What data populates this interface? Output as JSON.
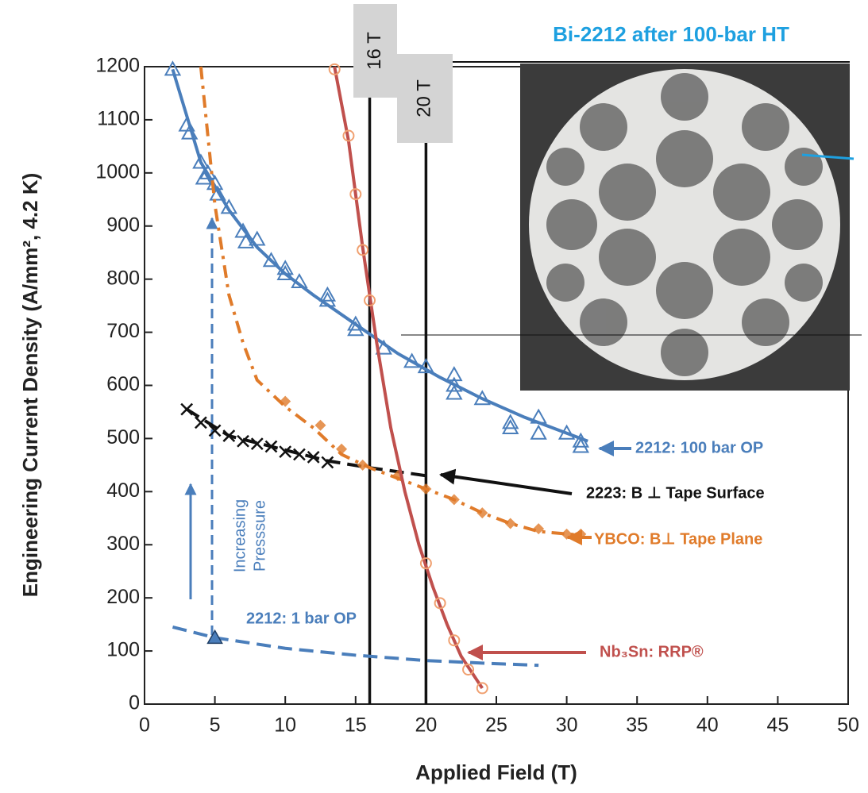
{
  "chart_data": {
    "type": "scatter",
    "title": "Bi-2212 after 100-bar HT",
    "x_label": "Applied Field (T)",
    "y_label": "Engineering Current Density (A/mm², 4.2 K)",
    "xlim": [
      0,
      50
    ],
    "xticks": [
      0,
      5,
      10,
      15,
      20,
      25,
      30,
      35,
      40,
      45,
      50
    ],
    "ylim": [
      0,
      1200
    ],
    "yticks": [
      0,
      100,
      200,
      300,
      400,
      500,
      600,
      700,
      800,
      900,
      1000,
      1100,
      1200
    ],
    "pressure_note": [
      "Increasing",
      "Presssure"
    ],
    "vlines": [
      {
        "x": 16,
        "label": "16 T"
      },
      {
        "x": 20,
        "label": "20 T"
      }
    ],
    "series": [
      {
        "name": "2212: 100 bar OP",
        "color": "#4a7ebb",
        "marker": "triangle",
        "x": [
          2,
          3,
          3.2,
          4,
          4.2,
          4.5,
          5,
          5.2,
          6,
          7,
          7.2,
          8,
          9,
          10,
          10,
          11,
          13,
          13,
          15,
          15,
          17,
          19,
          20,
          22,
          22,
          22,
          24,
          26,
          26,
          28,
          28,
          30,
          31,
          31
        ],
        "values": [
          1195,
          1090,
          1075,
          1020,
          990,
          1000,
          980,
          960,
          935,
          890,
          870,
          875,
          835,
          810,
          820,
          795,
          770,
          760,
          715,
          705,
          670,
          645,
          635,
          620,
          600,
          585,
          575,
          530,
          520,
          540,
          510,
          510,
          495,
          485
        ],
        "line": {
          "dash": "solid",
          "x": [
            2,
            4,
            6,
            8,
            10,
            12,
            15,
            18,
            21,
            24,
            27,
            31.5
          ],
          "values": [
            1195,
            1020,
            930,
            860,
            810,
            770,
            715,
            660,
            615,
            575,
            540,
            495
          ]
        }
      },
      {
        "name": "2223: B ⊥ Tape Surface",
        "color": "#111111",
        "marker": "cross",
        "x": [
          3,
          4,
          5,
          6,
          7,
          8,
          9,
          10,
          11,
          12,
          13
        ],
        "values": [
          555,
          530,
          515,
          505,
          495,
          490,
          485,
          475,
          470,
          465,
          455
        ],
        "line": {
          "dash": "dashed",
          "x": [
            3,
            6,
            9,
            13,
            16,
            20
          ],
          "values": [
            555,
            505,
            485,
            458,
            445,
            430
          ]
        }
      },
      {
        "name": "YBCO: B⊥ Tape Plane",
        "color": "#e07b2a",
        "marker": "diamond",
        "x": [
          10,
          12.5,
          14,
          15.5,
          18,
          20,
          22,
          24,
          26,
          28,
          30,
          31
        ],
        "values": [
          570,
          525,
          480,
          450,
          430,
          405,
          385,
          360,
          340,
          330,
          320,
          320
        ],
        "line": {
          "dash": "dashdot",
          "x": [
            4,
            5,
            6,
            7,
            8,
            10,
            12,
            14,
            16,
            18,
            20,
            22,
            24,
            26,
            28,
            31
          ],
          "values": [
            1200,
            940,
            770,
            680,
            610,
            560,
            520,
            470,
            445,
            425,
            405,
            385,
            360,
            340,
            325,
            318
          ]
        }
      },
      {
        "name": "Nb₃Sn: RRP®",
        "color": "#c0504d",
        "marker": "circle",
        "x": [
          13.5,
          14.5,
          15,
          15.5,
          16,
          20,
          21,
          22,
          23,
          24
        ],
        "values": [
          1195,
          1070,
          960,
          855,
          760,
          265,
          190,
          120,
          65,
          30
        ],
        "line": {
          "dash": "solid",
          "x": [
            13.5,
            14.5,
            15.5,
            16.5,
            17.5,
            18.5,
            19.5,
            20.5,
            21.5,
            22.5,
            23.5,
            24
          ],
          "values": [
            1200,
            1060,
            860,
            680,
            520,
            400,
            300,
            220,
            150,
            90,
            50,
            30
          ]
        }
      },
      {
        "name": "2212: 1 bar OP",
        "color": "#4a7ebb",
        "marker": "triangle-filled",
        "x": [
          5
        ],
        "values": [
          125
        ],
        "line": {
          "dash": "dashed",
          "x": [
            2,
            5,
            10,
            15,
            20,
            25,
            28
          ],
          "values": [
            145,
            125,
            105,
            92,
            82,
            76,
            73
          ]
        }
      }
    ]
  }
}
